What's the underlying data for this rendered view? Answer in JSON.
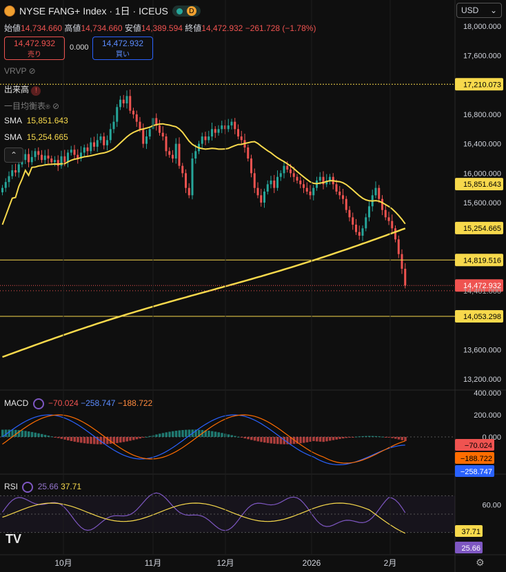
{
  "header": {
    "symbol_title": "NYSE FANG+ Index · 1日 · ICEUS",
    "badge_d": "D",
    "currency": "USD",
    "ohlc": {
      "open_label": "始値",
      "open": "14,734.660",
      "high_label": "高値",
      "high": "14,734.660",
      "low_label": "安値",
      "low": "14,389.594",
      "close_label": "終値",
      "close": "14,472.932",
      "change": "−261.728",
      "change_pct": "(−1.78%)"
    },
    "sell_price": "14,472.932",
    "sell_label": "売り",
    "spread": "0.000",
    "buy_price": "14,472.932",
    "buy_label": "買い"
  },
  "indicators": {
    "vrvp": "VRVP",
    "volume": "出来高",
    "ichimoku": "一目均衡表",
    "ichimoku_mark": "®",
    "sma1_label": "SMA",
    "sma1_value": "15,851.643",
    "sma2_label": "SMA",
    "sma2_value": "15,254.665"
  },
  "price_axis": {
    "ticks": [
      "18,000.000",
      "17,600.000",
      "16,800.000",
      "16,400.000",
      "16,000.000",
      "15,600.000",
      "13,600.000",
      "13,200.000"
    ],
    "tick_values": [
      18000,
      17600,
      16800,
      16400,
      16000,
      15600,
      13600,
      13200
    ],
    "levels": [
      {
        "text": "17,210.073",
        "value": 17210.073,
        "style": "dotted",
        "color": "#f7d94c"
      },
      {
        "text": "14,819.516",
        "value": 14819.516,
        "style": "solid",
        "color": "#f7d94c"
      },
      {
        "text": "14,053.298",
        "value": 14053.298,
        "style": "solid",
        "color": "#f7d94c"
      }
    ],
    "sma1_badge": "15,851.643",
    "sma2_badge": "15,254.665",
    "last_price_badge": "14,472.932",
    "hidden_label_partial": "14,401.000"
  },
  "macd": {
    "label": "MACD",
    "v1": "−70.024",
    "v2": "−258.747",
    "v3": "−188.722",
    "ticks": [
      "400.000",
      "200.000",
      "0.000"
    ],
    "badge_hist": "−70.024",
    "badge_signal": "−188.722",
    "badge_macd": "−258.747"
  },
  "rsi": {
    "label": "RSI",
    "v1": "25.66",
    "v2": "37.71",
    "ticks": [
      "60.00"
    ],
    "badge_ma": "37.71",
    "badge_rsi": "25.66"
  },
  "time_axis": {
    "labels": [
      "10月",
      "11月",
      "12月",
      "2026",
      "2月"
    ]
  },
  "colors": {
    "up": "#26a69a",
    "down": "#ef5350",
    "sma": "#f7d94c",
    "macd_line": "#2962ff",
    "signal_line": "#ff6d00",
    "rsi_line": "#7e57c2"
  },
  "chart_data": {
    "type": "candlestick",
    "note_series": "approximate daily closes",
    "closes": [
      15800,
      15880,
      15960,
      16040,
      16010,
      16120,
      16180,
      16260,
      16150,
      16220,
      16300,
      16250,
      16180,
      16240,
      16200,
      16150,
      16180,
      16100,
      16230,
      16150,
      16280,
      16320,
      16250,
      16200,
      16280,
      16350,
      16300,
      16420,
      16360,
      16450,
      16500,
      16380,
      16450,
      16600,
      16700,
      16900,
      17000,
      16950,
      17050,
      16850,
      16800,
      16700,
      16600,
      16400,
      16500,
      16600,
      16750,
      16650,
      16550,
      16500,
      16300,
      16250,
      16200,
      16400,
      16100,
      16000,
      15800,
      15700,
      16200,
      16300,
      16400,
      16500,
      16450,
      16500,
      16600,
      16550,
      16600,
      16650,
      16600,
      16650,
      16700,
      16600,
      16500,
      16450,
      16350,
      16200,
      16000,
      15800,
      15700,
      15600,
      15750,
      15850,
      15900,
      15800,
      15950,
      16000,
      16100,
      16050,
      16000,
      15950,
      15900,
      15850,
      15800,
      15750,
      15700,
      15800,
      15900,
      15950,
      15850,
      15900,
      15950,
      15850,
      15750,
      15700,
      15650,
      15500,
      15400,
      15300,
      15200,
      15150,
      15250,
      15400,
      15550,
      15700,
      15800,
      15650,
      15500,
      15400,
      15350,
      15250,
      15100,
      14900,
      14700,
      14472.932
    ],
    "sma_short_last": 15851.643,
    "sma_long_last": 15254.665,
    "ylim": [
      13000,
      18200
    ],
    "macd_last": -258.747,
    "signal_last": -188.722,
    "hist_last": -70.024,
    "rsi_last": 25.66,
    "rsi_ma_last": 37.71
  }
}
